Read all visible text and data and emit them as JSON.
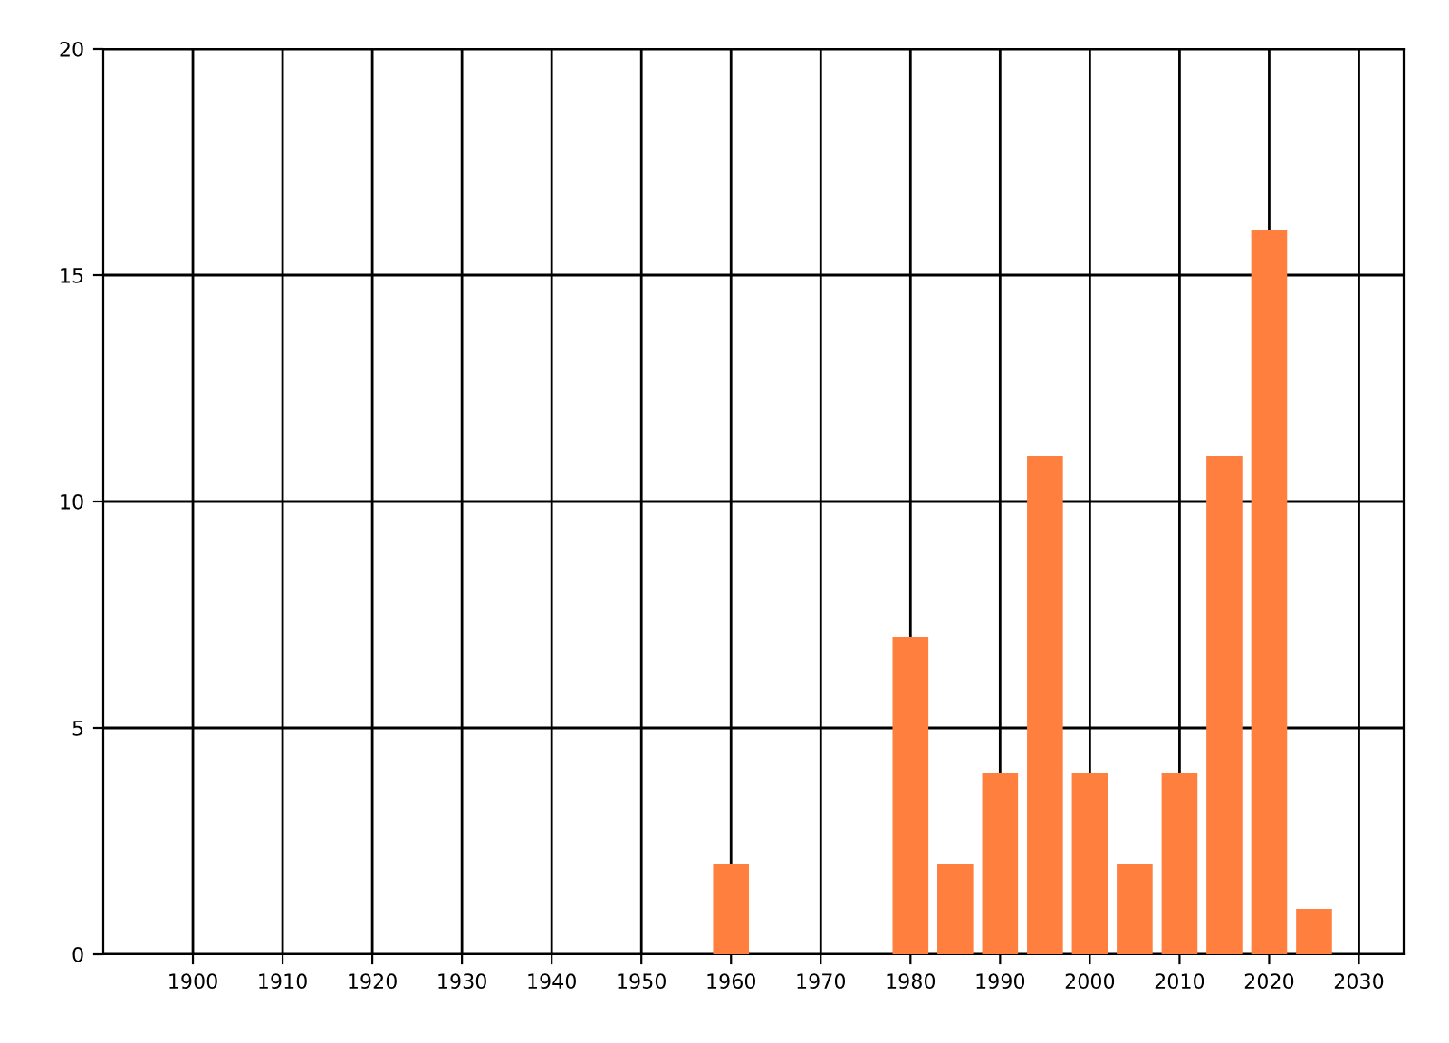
{
  "chart_data": {
    "type": "bar",
    "x": [
      1960,
      1980,
      1985,
      1990,
      1995,
      2000,
      2005,
      2010,
      2015,
      2020,
      2025
    ],
    "values": [
      2,
      7,
      2,
      4,
      11,
      4,
      2,
      4,
      11,
      16,
      1
    ],
    "color": "#ff7f3f",
    "xlim": [
      1890,
      2035
    ],
    "xticks": [
      1900,
      1910,
      1920,
      1930,
      1940,
      1950,
      1960,
      1970,
      1980,
      1990,
      2000,
      2010,
      2020,
      2030
    ],
    "ylim": [
      0,
      20
    ],
    "yticks": [
      0,
      5,
      10,
      15,
      20
    ],
    "grid": true
  }
}
